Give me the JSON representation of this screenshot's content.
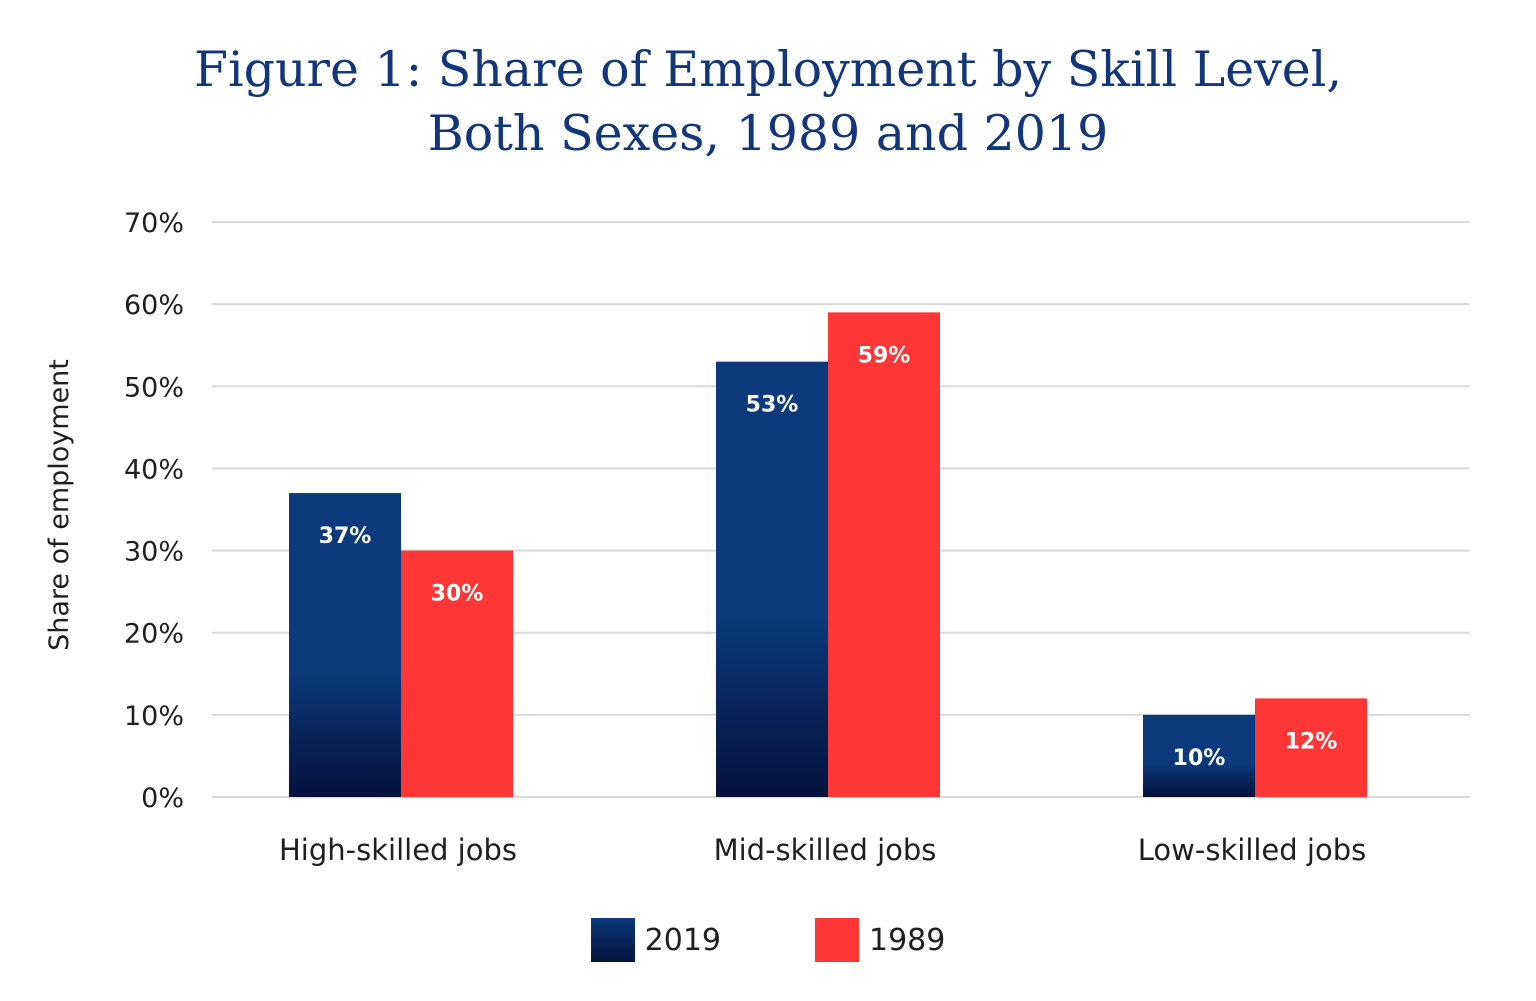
{
  "title": {
    "line1": "Figure 1: Share of Employment by Skill Level,",
    "line2": "Both Sexes, 1989 and 2019"
  },
  "colors": {
    "series_2019_top": "#0c3a7c",
    "series_2019_bottom": "#05123c",
    "series_1989": "#ff3636",
    "title": "#13357a",
    "grid": "#d9d9d9"
  },
  "chart_data": {
    "type": "bar",
    "title": "Figure 1: Share of Employment by Skill Level, Both Sexes, 1989 and 2019",
    "xlabel": "",
    "ylabel": "Share of employment",
    "ylim": [
      0,
      70
    ],
    "yticks": [
      0,
      10,
      20,
      30,
      40,
      50,
      60,
      70
    ],
    "ytick_labels": [
      "0%",
      "10%",
      "20%",
      "30%",
      "40%",
      "50%",
      "60%",
      "70%"
    ],
    "grid": true,
    "legend_position": "bottom-center",
    "categories": [
      "High-skilled jobs",
      "Mid-skilled jobs",
      "Low-skilled jobs"
    ],
    "series": [
      {
        "name": "2019",
        "values": [
          37,
          53,
          10
        ],
        "labels": [
          "37%",
          "53%",
          "10%"
        ]
      },
      {
        "name": "1989",
        "values": [
          30,
          59,
          12
        ],
        "labels": [
          "30%",
          "59%",
          "12%"
        ]
      }
    ]
  },
  "legend": {
    "items": [
      "2019",
      "1989"
    ]
  }
}
